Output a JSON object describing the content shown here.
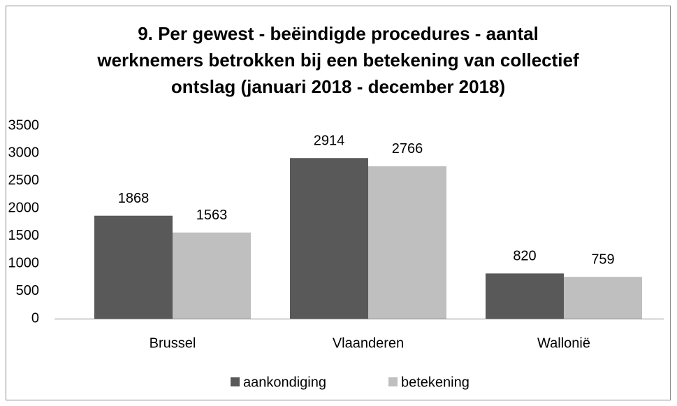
{
  "chart_data": {
    "type": "bar",
    "title": [
      "9. Per gewest - beëindigde procedures - aantal",
      "werknemers betrokken bij een betekening van collectief",
      "ontslag (januari 2018 - december 2018)"
    ],
    "categories": [
      "Brussel",
      "Vlaanderen",
      "Wallonië"
    ],
    "series": [
      {
        "name": "aankondiging",
        "color": "#595959",
        "values": [
          1868,
          2914,
          820
        ]
      },
      {
        "name": "betekening",
        "color": "#bfbfbf",
        "values": [
          1563,
          2766,
          759
        ]
      }
    ],
    "ylim": [
      0,
      3500
    ],
    "yticks": [
      0,
      500,
      1000,
      1500,
      2000,
      2500,
      3000,
      3500
    ],
    "grid": false,
    "legend": "bottom",
    "data_labels": true
  }
}
